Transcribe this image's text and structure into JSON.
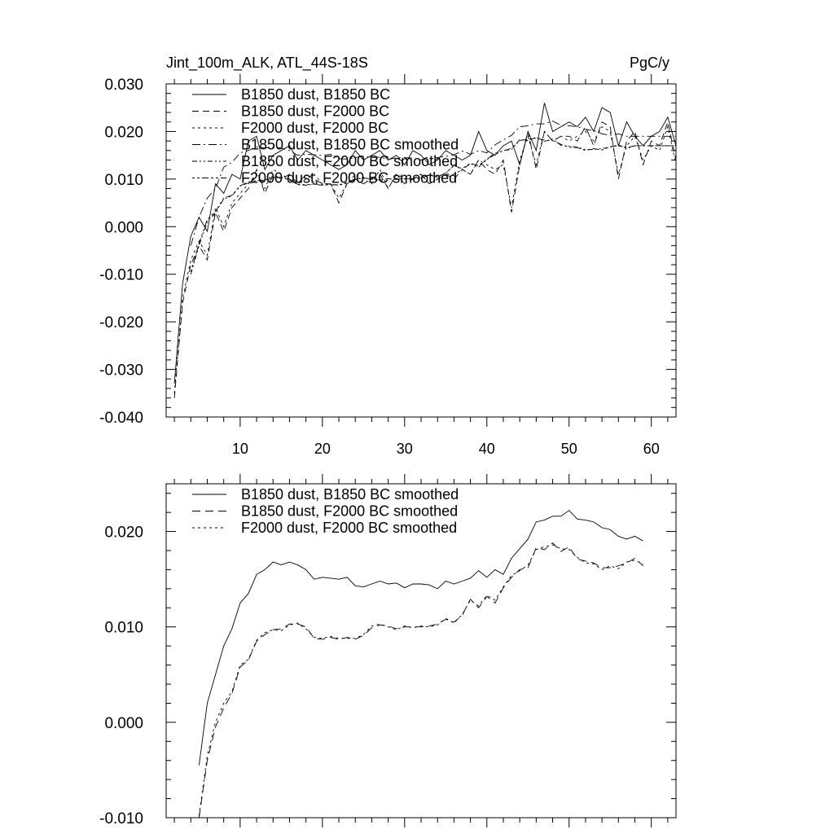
{
  "chart_data": [
    {
      "type": "line",
      "title_left": "Jint_100m_ALK, ATL_44S-18S",
      "title_right": "PgC/y",
      "xlim": [
        1,
        63
      ],
      "ylim": [
        -0.04,
        0.03
      ],
      "x_ticks": [
        10,
        20,
        30,
        40,
        50,
        60
      ],
      "y_ticks": [
        -0.04,
        -0.03,
        -0.02,
        -0.01,
        0.0,
        0.01,
        0.02,
        0.03
      ],
      "y_tick_labels": [
        "-0.040",
        "-0.030",
        "-0.020",
        "-0.010",
        "0.000",
        "0.010",
        "0.020",
        "0.030"
      ],
      "x_start": 2,
      "legend": "top-left",
      "series": [
        {
          "name": "B1850 dust, B1850 BC",
          "dash": "solid",
          "values": [
            -0.033,
            -0.012,
            -0.002,
            0.002,
            -0.001,
            0.009,
            0.007,
            0.011,
            0.01,
            0.018,
            0.019,
            0.012,
            0.015,
            0.016,
            0.017,
            0.014,
            0.016,
            0.015,
            0.014,
            0.013,
            0.012,
            0.013,
            0.016,
            0.014,
            0.015,
            0.016,
            0.014,
            0.015,
            0.013,
            0.016,
            0.015,
            0.013,
            0.014,
            0.016,
            0.015,
            0.014,
            0.015,
            0.02,
            0.016,
            0.015,
            0.017,
            0.018,
            0.013,
            0.02,
            0.016,
            0.026,
            0.02,
            0.021,
            0.022,
            0.021,
            0.023,
            0.02,
            0.025,
            0.024,
            0.017,
            0.022,
            0.019,
            0.017,
            0.019,
            0.02,
            0.023,
            0.017
          ]
        },
        {
          "name": "B1850 dust, F2000 BC",
          "dash": "8,5",
          "values": [
            -0.036,
            -0.016,
            -0.008,
            -0.004,
            -0.007,
            0.003,
            -0.001,
            0.004,
            0.006,
            0.008,
            0.012,
            0.007,
            0.011,
            0.01,
            0.011,
            0.009,
            0.011,
            0.01,
            0.009,
            0.009,
            0.005,
            0.009,
            0.01,
            0.009,
            0.01,
            0.011,
            0.008,
            0.011,
            0.009,
            0.01,
            0.011,
            0.009,
            0.01,
            0.011,
            0.01,
            0.012,
            0.011,
            0.014,
            0.012,
            0.011,
            0.014,
            0.003,
            0.013,
            0.02,
            0.012,
            0.02,
            0.018,
            0.019,
            0.019,
            0.018,
            0.021,
            0.017,
            0.022,
            0.021,
            0.01,
            0.018,
            0.02,
            0.013,
            0.018,
            0.017,
            0.022,
            0.014
          ]
        },
        {
          "name": "F2000 dust, F2000 BC",
          "dash": "3,4",
          "values": [
            -0.035,
            -0.015,
            -0.007,
            -0.003,
            -0.006,
            0.004,
            0.0,
            0.005,
            0.007,
            0.009,
            0.011,
            0.008,
            0.012,
            0.011,
            0.01,
            0.009,
            0.01,
            0.011,
            0.009,
            0.009,
            0.006,
            0.009,
            0.011,
            0.01,
            0.009,
            0.012,
            0.008,
            0.011,
            0.01,
            0.01,
            0.011,
            0.009,
            0.01,
            0.011,
            0.011,
            0.012,
            0.011,
            0.014,
            0.013,
            0.012,
            0.013,
            0.004,
            0.014,
            0.019,
            0.013,
            0.02,
            0.018,
            0.019,
            0.018,
            0.019,
            0.02,
            0.018,
            0.021,
            0.02,
            0.011,
            0.017,
            0.019,
            0.014,
            0.017,
            0.016,
            0.021,
            0.013
          ]
        },
        {
          "name": "B1850 dust, B1850 BC smoothed",
          "dash": "10,4,2,4",
          "values": [
            null,
            null,
            -0.004,
            0.002,
            0.006,
            0.008,
            0.0125,
            0.0135,
            0.0155,
            0.016,
            0.0168,
            0.0165,
            0.0168,
            0.0165,
            0.016,
            0.015,
            0.0152,
            0.0151,
            0.015,
            0.0152,
            0.0143,
            0.0142,
            0.0145,
            0.0148,
            0.0145,
            0.0146,
            0.0141,
            0.0145,
            0.0145,
            0.0144,
            0.014,
            0.0148,
            0.0145,
            0.0148,
            0.0151,
            0.0159,
            0.0152,
            0.016,
            0.0155,
            0.0172,
            0.0182,
            0.0192,
            0.021,
            0.0212,
            0.0216,
            0.0216,
            0.0222,
            0.0213,
            0.0212,
            0.021,
            0.0204,
            0.0202,
            0.0195,
            0.0192,
            0.0195,
            0.019,
            0.019,
            0.019,
            0.019,
            0.019,
            0.019,
            0.019
          ]
        },
        {
          "name": "B1850 dust, F2000 BC smoothed",
          "dash": "6,3,2,3,2,3",
          "values": [
            null,
            null,
            -0.01,
            -0.004,
            0.001,
            0.003,
            0.0058,
            0.0065,
            0.0085,
            0.0092,
            0.0097,
            0.0098,
            0.0103,
            0.0103,
            0.01,
            0.0088,
            0.0087,
            0.0089,
            0.0087,
            0.0089,
            0.0087,
            0.0091,
            0.0099,
            0.0102,
            0.0101,
            0.0098,
            0.01,
            0.01,
            0.01,
            0.0101,
            0.0103,
            0.0108,
            0.0105,
            0.0112,
            0.0129,
            0.012,
            0.0132,
            0.0125,
            0.0141,
            0.0152,
            0.016,
            0.0162,
            0.0183,
            0.0181,
            0.0188,
            0.0179,
            0.0184,
            0.0171,
            0.0169,
            0.0167,
            0.0162,
            0.0162,
            0.0164,
            0.0167,
            0.0172,
            0.0164,
            0.017,
            0.017,
            0.017,
            0.017,
            0.017,
            0.017
          ]
        },
        {
          "name": "F2000 dust, F2000 BC smoothed",
          "dash": "3,3,3,3,8,3",
          "values": [
            null,
            null,
            -0.0095,
            -0.0035,
            0.0015,
            0.0032,
            0.006,
            0.0066,
            0.0086,
            0.0094,
            0.0097,
            0.0096,
            0.0102,
            0.0104,
            0.0098,
            0.0089,
            0.0088,
            0.009,
            0.0088,
            0.0088,
            0.0088,
            0.0092,
            0.0101,
            0.0103,
            0.01,
            0.0097,
            0.0101,
            0.0099,
            0.0101,
            0.01,
            0.0102,
            0.0109,
            0.0104,
            0.0113,
            0.0128,
            0.0122,
            0.0133,
            0.0128,
            0.0142,
            0.0154,
            0.0159,
            0.0165,
            0.0181,
            0.0184,
            0.0186,
            0.0182,
            0.0181,
            0.0173,
            0.0167,
            0.0166,
            0.016,
            0.0164,
            0.0161,
            0.0168,
            0.017,
            0.0166,
            0.017,
            0.017,
            0.017,
            0.017,
            0.017,
            0.017
          ]
        }
      ]
    },
    {
      "type": "line",
      "xlim": [
        1,
        63
      ],
      "ylim": [
        -0.01,
        0.025
      ],
      "x_ticks": [
        10,
        20,
        30,
        40,
        50,
        60
      ],
      "y_ticks": [
        -0.01,
        0.0,
        0.01,
        0.02
      ],
      "y_tick_labels": [
        "-0.010",
        "0.000",
        "0.010",
        "0.020"
      ],
      "x_start": 5,
      "legend": "top-left",
      "series": [
        {
          "name": "B1850 dust, B1850 BC smoothed",
          "dash": "solid",
          "values": [
            -0.0045,
            0.002,
            0.005,
            0.008,
            0.0098,
            0.0125,
            0.0135,
            0.0155,
            0.016,
            0.0168,
            0.0165,
            0.0168,
            0.0165,
            0.016,
            0.015,
            0.0152,
            0.0151,
            0.015,
            0.0152,
            0.0143,
            0.0142,
            0.0145,
            0.0148,
            0.0145,
            0.0146,
            0.0141,
            0.0145,
            0.0145,
            0.0144,
            0.014,
            0.0148,
            0.0145,
            0.0148,
            0.0151,
            0.0159,
            0.0152,
            0.016,
            0.0155,
            0.0172,
            0.0182,
            0.0192,
            0.021,
            0.0212,
            0.0216,
            0.0216,
            0.0222,
            0.0213,
            0.0212,
            0.021,
            0.0204,
            0.0202,
            0.0195,
            0.0192,
            0.0195,
            0.019
          ]
        },
        {
          "name": "B1850 dust, F2000 BC smoothed",
          "dash": "10,6",
          "values": [
            -0.01,
            -0.004,
            -0.0005,
            0.0015,
            0.003,
            0.0058,
            0.0065,
            0.0085,
            0.0092,
            0.0097,
            0.0098,
            0.0103,
            0.0103,
            0.01,
            0.0088,
            0.0087,
            0.0089,
            0.0087,
            0.0089,
            0.0087,
            0.0091,
            0.0099,
            0.0102,
            0.0101,
            0.0098,
            0.01,
            0.01,
            0.01,
            0.0101,
            0.0103,
            0.0108,
            0.0105,
            0.0112,
            0.0129,
            0.012,
            0.0132,
            0.0125,
            0.0141,
            0.0152,
            0.016,
            0.0162,
            0.0183,
            0.0181,
            0.0188,
            0.0179,
            0.0184,
            0.0171,
            0.0169,
            0.0167,
            0.0162,
            0.0162,
            0.0164,
            0.0167,
            0.0172,
            0.0164
          ]
        },
        {
          "name": "F2000 dust, F2000 BC smoothed",
          "dash": "3,4",
          "values": [
            -0.0098,
            -0.0035,
            0.0,
            0.002,
            0.0032,
            0.006,
            0.0066,
            0.0086,
            0.0094,
            0.0097,
            0.0096,
            0.0102,
            0.0104,
            0.0098,
            0.0089,
            0.0088,
            0.009,
            0.0088,
            0.0088,
            0.0088,
            0.0092,
            0.0101,
            0.0103,
            0.01,
            0.0097,
            0.0101,
            0.0099,
            0.0101,
            0.01,
            0.0102,
            0.0109,
            0.0104,
            0.0113,
            0.0128,
            0.0122,
            0.0133,
            0.0128,
            0.0142,
            0.0154,
            0.0159,
            0.0165,
            0.0181,
            0.0184,
            0.0186,
            0.0182,
            0.0181,
            0.0173,
            0.0167,
            0.0166,
            0.016,
            0.0164,
            0.0161,
            0.0168,
            0.017,
            0.0166
          ]
        }
      ]
    }
  ]
}
